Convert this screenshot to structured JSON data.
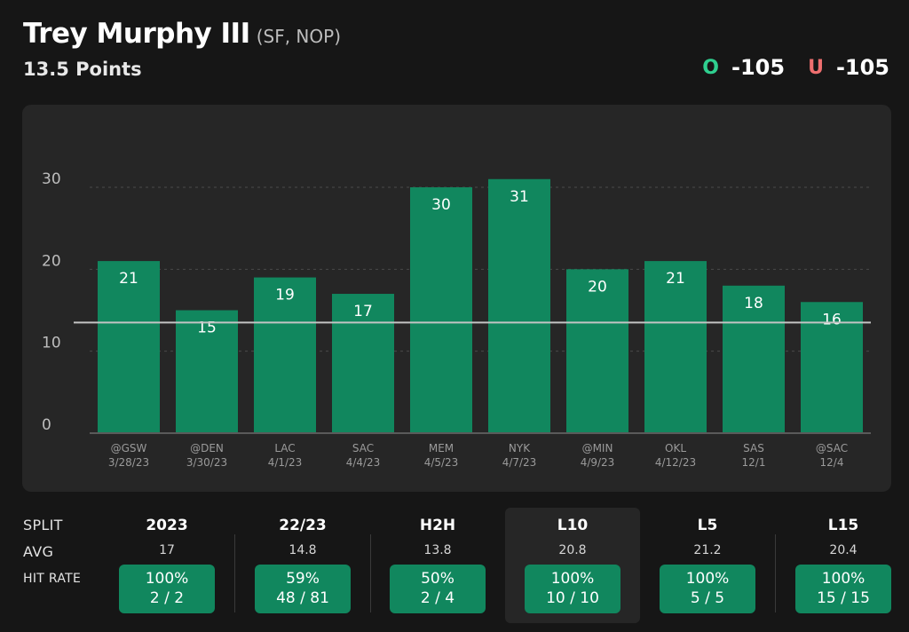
{
  "player": {
    "name": "Trey Murphy III",
    "team": "(SF, NOP)"
  },
  "prop": {
    "line_label": "13.5 Points",
    "line": 13.5
  },
  "odds": {
    "over_badge": "O",
    "over_value": "-105",
    "under_badge": "U",
    "under_value": "-105",
    "over_color": "#2fcf8f",
    "under_color": "#ef6f6f"
  },
  "chart_data": {
    "type": "bar",
    "title": "",
    "xlabel": "",
    "ylabel": "",
    "ylim": [
      0,
      30
    ],
    "yticks": [
      0,
      10,
      20,
      30
    ],
    "prop_line": 13.5,
    "categories": [
      {
        "opp": "@GSW",
        "date": "3/28/23"
      },
      {
        "opp": "@DEN",
        "date": "3/30/23"
      },
      {
        "opp": "LAC",
        "date": "4/1/23"
      },
      {
        "opp": "SAC",
        "date": "4/4/23"
      },
      {
        "opp": "MEM",
        "date": "4/5/23"
      },
      {
        "opp": "NYK",
        "date": "4/7/23"
      },
      {
        "opp": "@MIN",
        "date": "4/9/23"
      },
      {
        "opp": "OKL",
        "date": "4/12/23"
      },
      {
        "opp": "SAS",
        "date": "12/1"
      },
      {
        "opp": "@SAC",
        "date": "12/4"
      }
    ],
    "values": [
      21,
      15,
      19,
      17,
      30,
      31,
      20,
      21,
      18,
      16
    ],
    "bar_color": "#11875e"
  },
  "splits": {
    "row_labels": {
      "split": "SPLIT",
      "avg": "AVG",
      "hit_rate": "HIT RATE"
    },
    "columns": [
      {
        "name": "2023",
        "avg": "17",
        "pct": "100%",
        "ratio": "2 / 2"
      },
      {
        "name": "22/23",
        "avg": "14.8",
        "pct": "59%",
        "ratio": "48 / 81"
      },
      {
        "name": "H2H",
        "avg": "13.8",
        "pct": "50%",
        "ratio": "2 / 4"
      },
      {
        "name": "L10",
        "avg": "20.8",
        "pct": "100%",
        "ratio": "10 / 10"
      },
      {
        "name": "L5",
        "avg": "21.2",
        "pct": "100%",
        "ratio": "5 / 5"
      },
      {
        "name": "L15",
        "avg": "20.4",
        "pct": "100%",
        "ratio": "15 / 15"
      }
    ]
  }
}
